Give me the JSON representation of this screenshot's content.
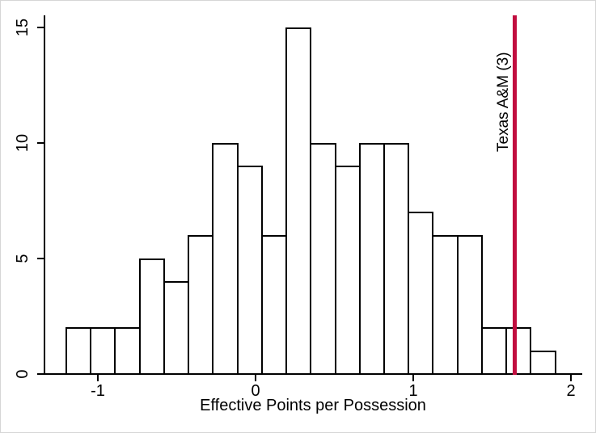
{
  "window": {
    "background": "#ffffff",
    "border_color": "#d6d6d6"
  },
  "chart_data": {
    "type": "bar",
    "subtype": "histogram",
    "title": "",
    "xlabel": "Effective Points per Possession",
    "ylabel": "",
    "x_ticks": [
      "-1",
      "0",
      "1",
      "2"
    ],
    "x_tick_values": [
      -1,
      0,
      1,
      2
    ],
    "y_ticks": [
      "0",
      "5",
      "10",
      "15"
    ],
    "y_tick_values": [
      0,
      5,
      10,
      15
    ],
    "xlim": [
      -1.34,
      2.07
    ],
    "ylim": [
      0,
      15
    ],
    "grid": false,
    "legend": "none",
    "bin_start": -1.205,
    "bin_width": 0.155,
    "frequencies": [
      2,
      2,
      2,
      5,
      4,
      6,
      10,
      9,
      6,
      15,
      10,
      9,
      10,
      10,
      7,
      6,
      6,
      2,
      2,
      1
    ],
    "bar_fill": "#ffffff",
    "bar_outline": "#000000",
    "axis_color": "#000000",
    "reference_line": {
      "label": "Texas A&M (3)",
      "x": 1.64,
      "color": "#c10d3f"
    }
  }
}
